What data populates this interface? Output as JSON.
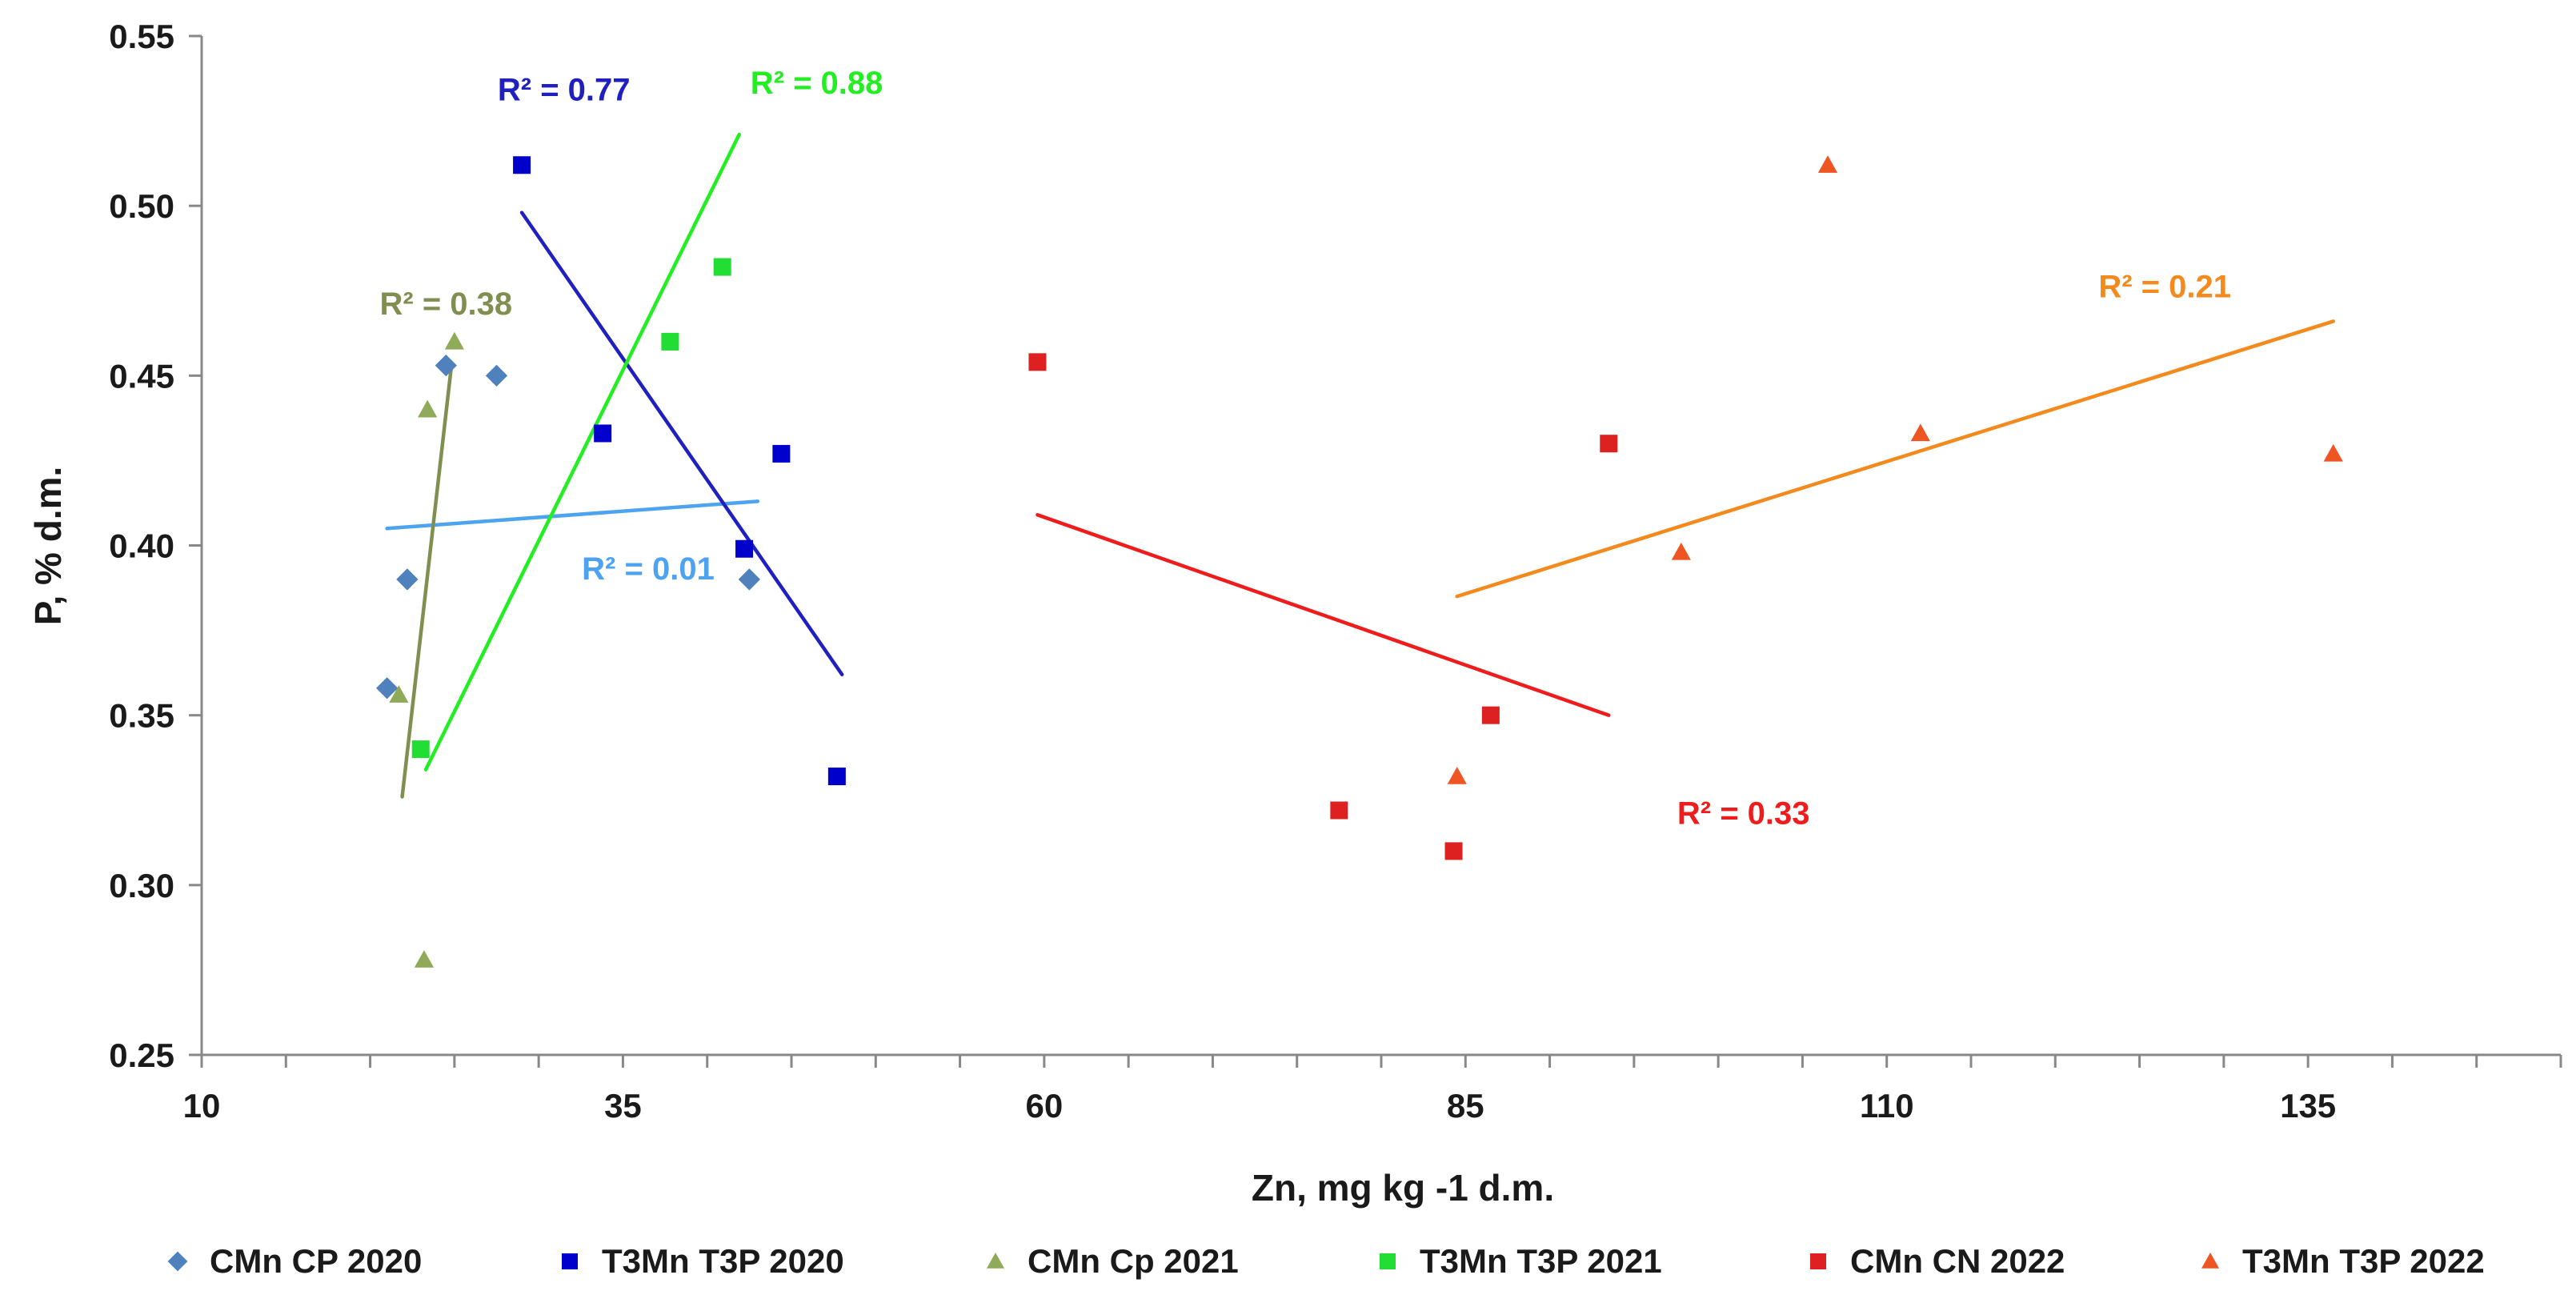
{
  "chart_data": {
    "type": "scatter",
    "xlabel": "Zn, mg kg -1 d.m.",
    "ylabel": "P, % d.m.",
    "xlim": [
      10,
      150
    ],
    "ylim": [
      0.25,
      0.55
    ],
    "xticks": [
      10,
      35,
      60,
      85,
      110,
      135
    ],
    "yticks": [
      0.25,
      0.3,
      0.35,
      0.4,
      0.45,
      0.5,
      0.55
    ],
    "xtick_labels": [
      "10",
      "35",
      "60",
      "85",
      "110",
      "135"
    ],
    "ytick_labels": [
      "0.25",
      "0.30",
      "0.35",
      "0.40",
      "0.45",
      "0.50",
      "0.55"
    ],
    "grid": false,
    "legend_position": "bottom",
    "series": [
      {
        "name": "CMn CP 2020",
        "marker": "diamond",
        "color": "#4f81bd",
        "points": [
          [
            21,
            0.358
          ],
          [
            22.2,
            0.39
          ],
          [
            24.5,
            0.453
          ],
          [
            27.5,
            0.45
          ],
          [
            42.5,
            0.39
          ]
        ],
        "trendline": {
          "x": [
            21,
            43
          ],
          "y": [
            0.405,
            0.413
          ],
          "color": "#4da3f0",
          "r2_label": "R² = 0.01",
          "r2_x": 36.5,
          "r2_y": 0.39
        }
      },
      {
        "name": "T3Mn  T3P 2020",
        "marker": "square",
        "color": "#0000cc",
        "points": [
          [
            29,
            0.512
          ],
          [
            33.8,
            0.433
          ],
          [
            42.2,
            0.399
          ],
          [
            44.4,
            0.427
          ],
          [
            47.7,
            0.332
          ]
        ],
        "trendline": {
          "x": [
            29,
            48
          ],
          "y": [
            0.498,
            0.362
          ],
          "color": "#2020c0",
          "r2_label": "R² = 0.77",
          "r2_x": 31.5,
          "r2_y": 0.531
        }
      },
      {
        "name": "CMn Cp 2021",
        "marker": "triangle",
        "color": "#8faa59",
        "points": [
          [
            21.7,
            0.356
          ],
          [
            23.4,
            0.44
          ],
          [
            25,
            0.46
          ],
          [
            23.2,
            0.278
          ]
        ],
        "trendline": {
          "x": [
            21.9,
            24.8
          ],
          "y": [
            0.326,
            0.452
          ],
          "color": "#7f8f50",
          "r2_label": "R² = 0.38",
          "r2_x": 24.5,
          "r2_y": 0.468
        }
      },
      {
        "name": "T3Mn  T3P 2021",
        "marker": "square",
        "color": "#22dd33",
        "points": [
          [
            23,
            0.34
          ],
          [
            37.8,
            0.46
          ],
          [
            40.9,
            0.482
          ]
        ],
        "trendline": {
          "x": [
            23.3,
            41.9
          ],
          "y": [
            0.334,
            0.521
          ],
          "color": "#22ee22",
          "r2_label": "R² = 0.88",
          "r2_x": 46.5,
          "r2_y": 0.533
        }
      },
      {
        "name": "CMn CN 2022",
        "marker": "square",
        "color": "#dd2020",
        "points": [
          [
            59.6,
            0.454
          ],
          [
            77.5,
            0.322
          ],
          [
            84.3,
            0.31
          ],
          [
            86.5,
            0.35
          ],
          [
            93.5,
            0.43
          ]
        ],
        "trendline": {
          "x": [
            59.6,
            93.5
          ],
          "y": [
            0.409,
            0.35
          ],
          "color": "#ee1c1c",
          "r2_label": "R² = 0.33",
          "r2_x": 101.5,
          "r2_y": 0.318
        }
      },
      {
        "name": "T3Mn  T3P 2022",
        "marker": "triangle",
        "color": "#ee5522",
        "points": [
          [
            84.5,
            0.332
          ],
          [
            97.8,
            0.398
          ],
          [
            106.5,
            0.512
          ],
          [
            112,
            0.433
          ],
          [
            136.5,
            0.427
          ]
        ],
        "trendline": {
          "x": [
            84.5,
            136.5
          ],
          "y": [
            0.385,
            0.466
          ],
          "color": "#f28a1e",
          "r2_label": "R² = 0.21",
          "r2_x": 126.5,
          "r2_y": 0.473
        }
      }
    ]
  }
}
